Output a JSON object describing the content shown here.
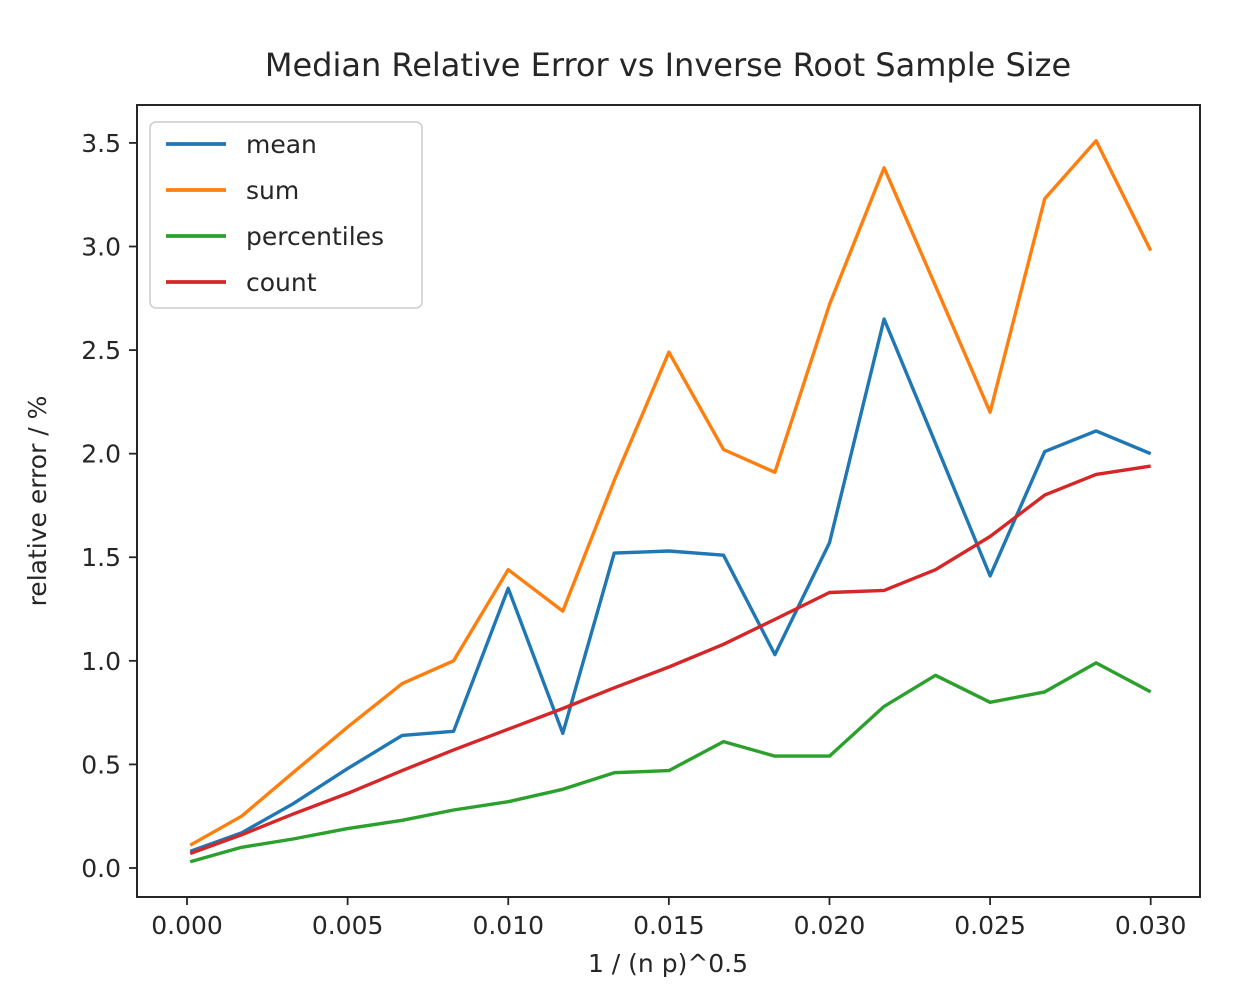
{
  "chart_data": {
    "type": "line",
    "title": "Median Relative Error vs Inverse Root Sample Size",
    "xlabel": "1 / (n p)^0.5",
    "ylabel": "relative error / %",
    "grid": false,
    "legend_position": "upper left",
    "xlim": [
      -0.001557,
      0.031535
    ],
    "ylim": [
      -0.14,
      3.683
    ],
    "xticks": {
      "values": [
        0.0,
        0.005,
        0.01,
        0.015,
        0.02,
        0.025,
        0.03
      ],
      "labels": [
        "0.000",
        "0.005",
        "0.010",
        "0.015",
        "0.020",
        "0.025",
        "0.030"
      ]
    },
    "yticks": {
      "values": [
        0.0,
        0.5,
        1.0,
        1.5,
        2.0,
        2.5,
        3.0,
        3.5
      ],
      "labels": [
        "0.0",
        "0.5",
        "1.0",
        "1.5",
        "2.0",
        "2.5",
        "3.0",
        "3.5"
      ]
    },
    "x": [
      0.0001,
      0.0017,
      0.0033,
      0.005,
      0.0067,
      0.0083,
      0.01,
      0.0117,
      0.0133,
      0.015,
      0.0167,
      0.0183,
      0.02,
      0.0217,
      0.0233,
      0.025,
      0.0267,
      0.0283,
      0.03
    ],
    "series": [
      {
        "name": "mean",
        "color": "#1f77b4",
        "values": [
          0.08,
          0.17,
          0.31,
          0.48,
          0.64,
          0.66,
          1.35,
          0.65,
          1.52,
          1.53,
          1.51,
          1.03,
          1.57,
          2.65,
          2.05,
          1.41,
          2.01,
          2.11,
          2.0
        ]
      },
      {
        "name": "sum",
        "color": "#ff7f0e",
        "values": [
          0.11,
          0.25,
          0.46,
          0.68,
          0.89,
          1.0,
          1.44,
          1.24,
          1.87,
          2.49,
          2.02,
          1.91,
          2.72,
          3.38,
          2.81,
          2.2,
          3.23,
          3.51,
          2.98
        ]
      },
      {
        "name": "percentiles",
        "color": "#2ca02c",
        "values": [
          0.03,
          0.1,
          0.14,
          0.19,
          0.23,
          0.28,
          0.32,
          0.38,
          0.46,
          0.47,
          0.61,
          0.54,
          0.54,
          0.78,
          0.93,
          0.8,
          0.85,
          0.99,
          0.85
        ]
      },
      {
        "name": "count",
        "color": "#d62728",
        "values": [
          0.07,
          0.16,
          0.26,
          0.36,
          0.47,
          0.57,
          0.67,
          0.77,
          0.87,
          0.97,
          1.08,
          1.2,
          1.33,
          1.34,
          1.44,
          1.6,
          1.8,
          1.9,
          1.94
        ]
      }
    ]
  },
  "style": {
    "spine_color": "#262626",
    "text_color": "#262626",
    "legend_border_color": "#cccccc",
    "background": "#ffffff"
  }
}
